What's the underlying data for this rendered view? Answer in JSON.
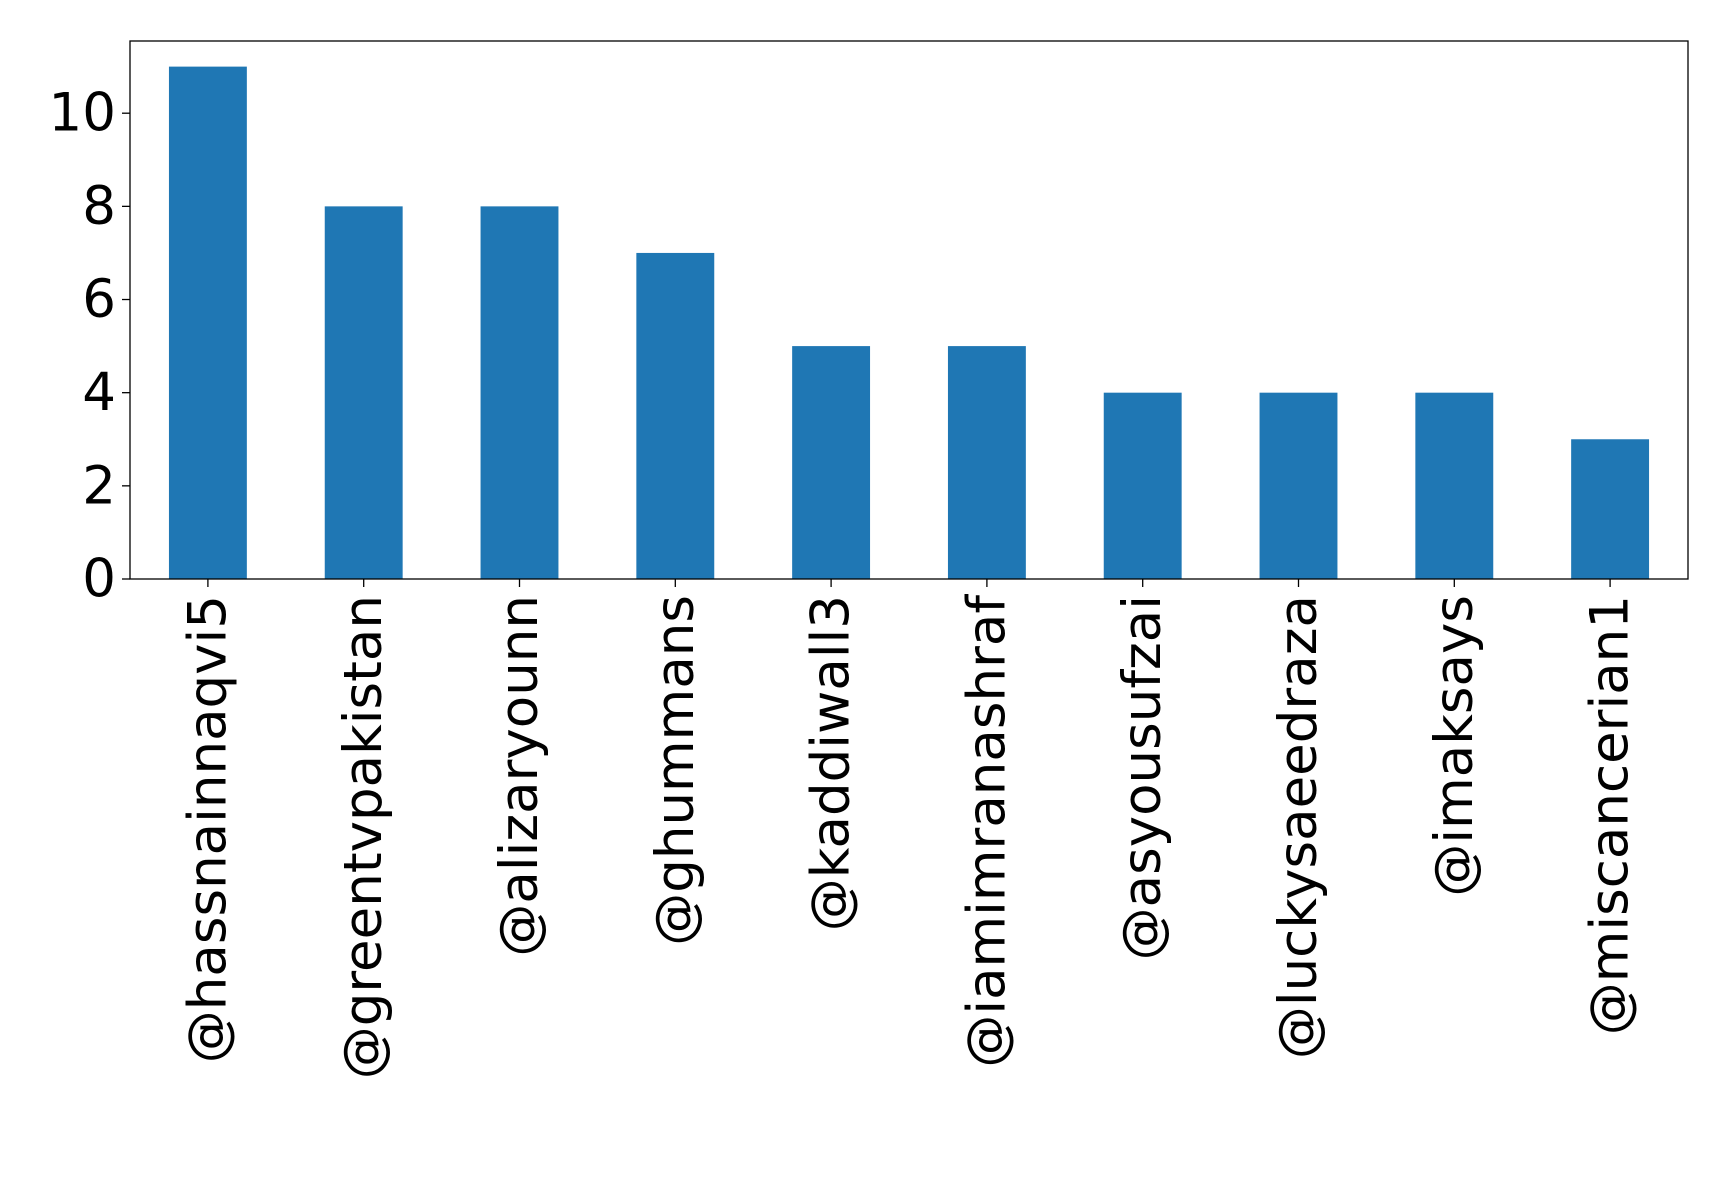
{
  "chart_data": {
    "type": "bar",
    "title": "",
    "xlabel": "",
    "ylabel": "",
    "categories": [
      "@hassnainnaqvi5",
      "@greentvpakistan",
      "@alizaryounn",
      "@ghummans",
      "@kaddiwall3",
      "@iamimranashraf",
      "@asyousufzai",
      "@luckysaeedraza",
      "@imaksays",
      "@miscancerian1"
    ],
    "values": [
      11,
      8,
      8,
      7,
      5,
      5,
      4,
      4,
      4,
      3
    ],
    "ylim": [
      0,
      11.55
    ],
    "yticks": [
      0,
      2,
      4,
      6,
      8,
      10
    ],
    "grid": false,
    "legend": "none",
    "bar_color": "#1f77b4"
  }
}
